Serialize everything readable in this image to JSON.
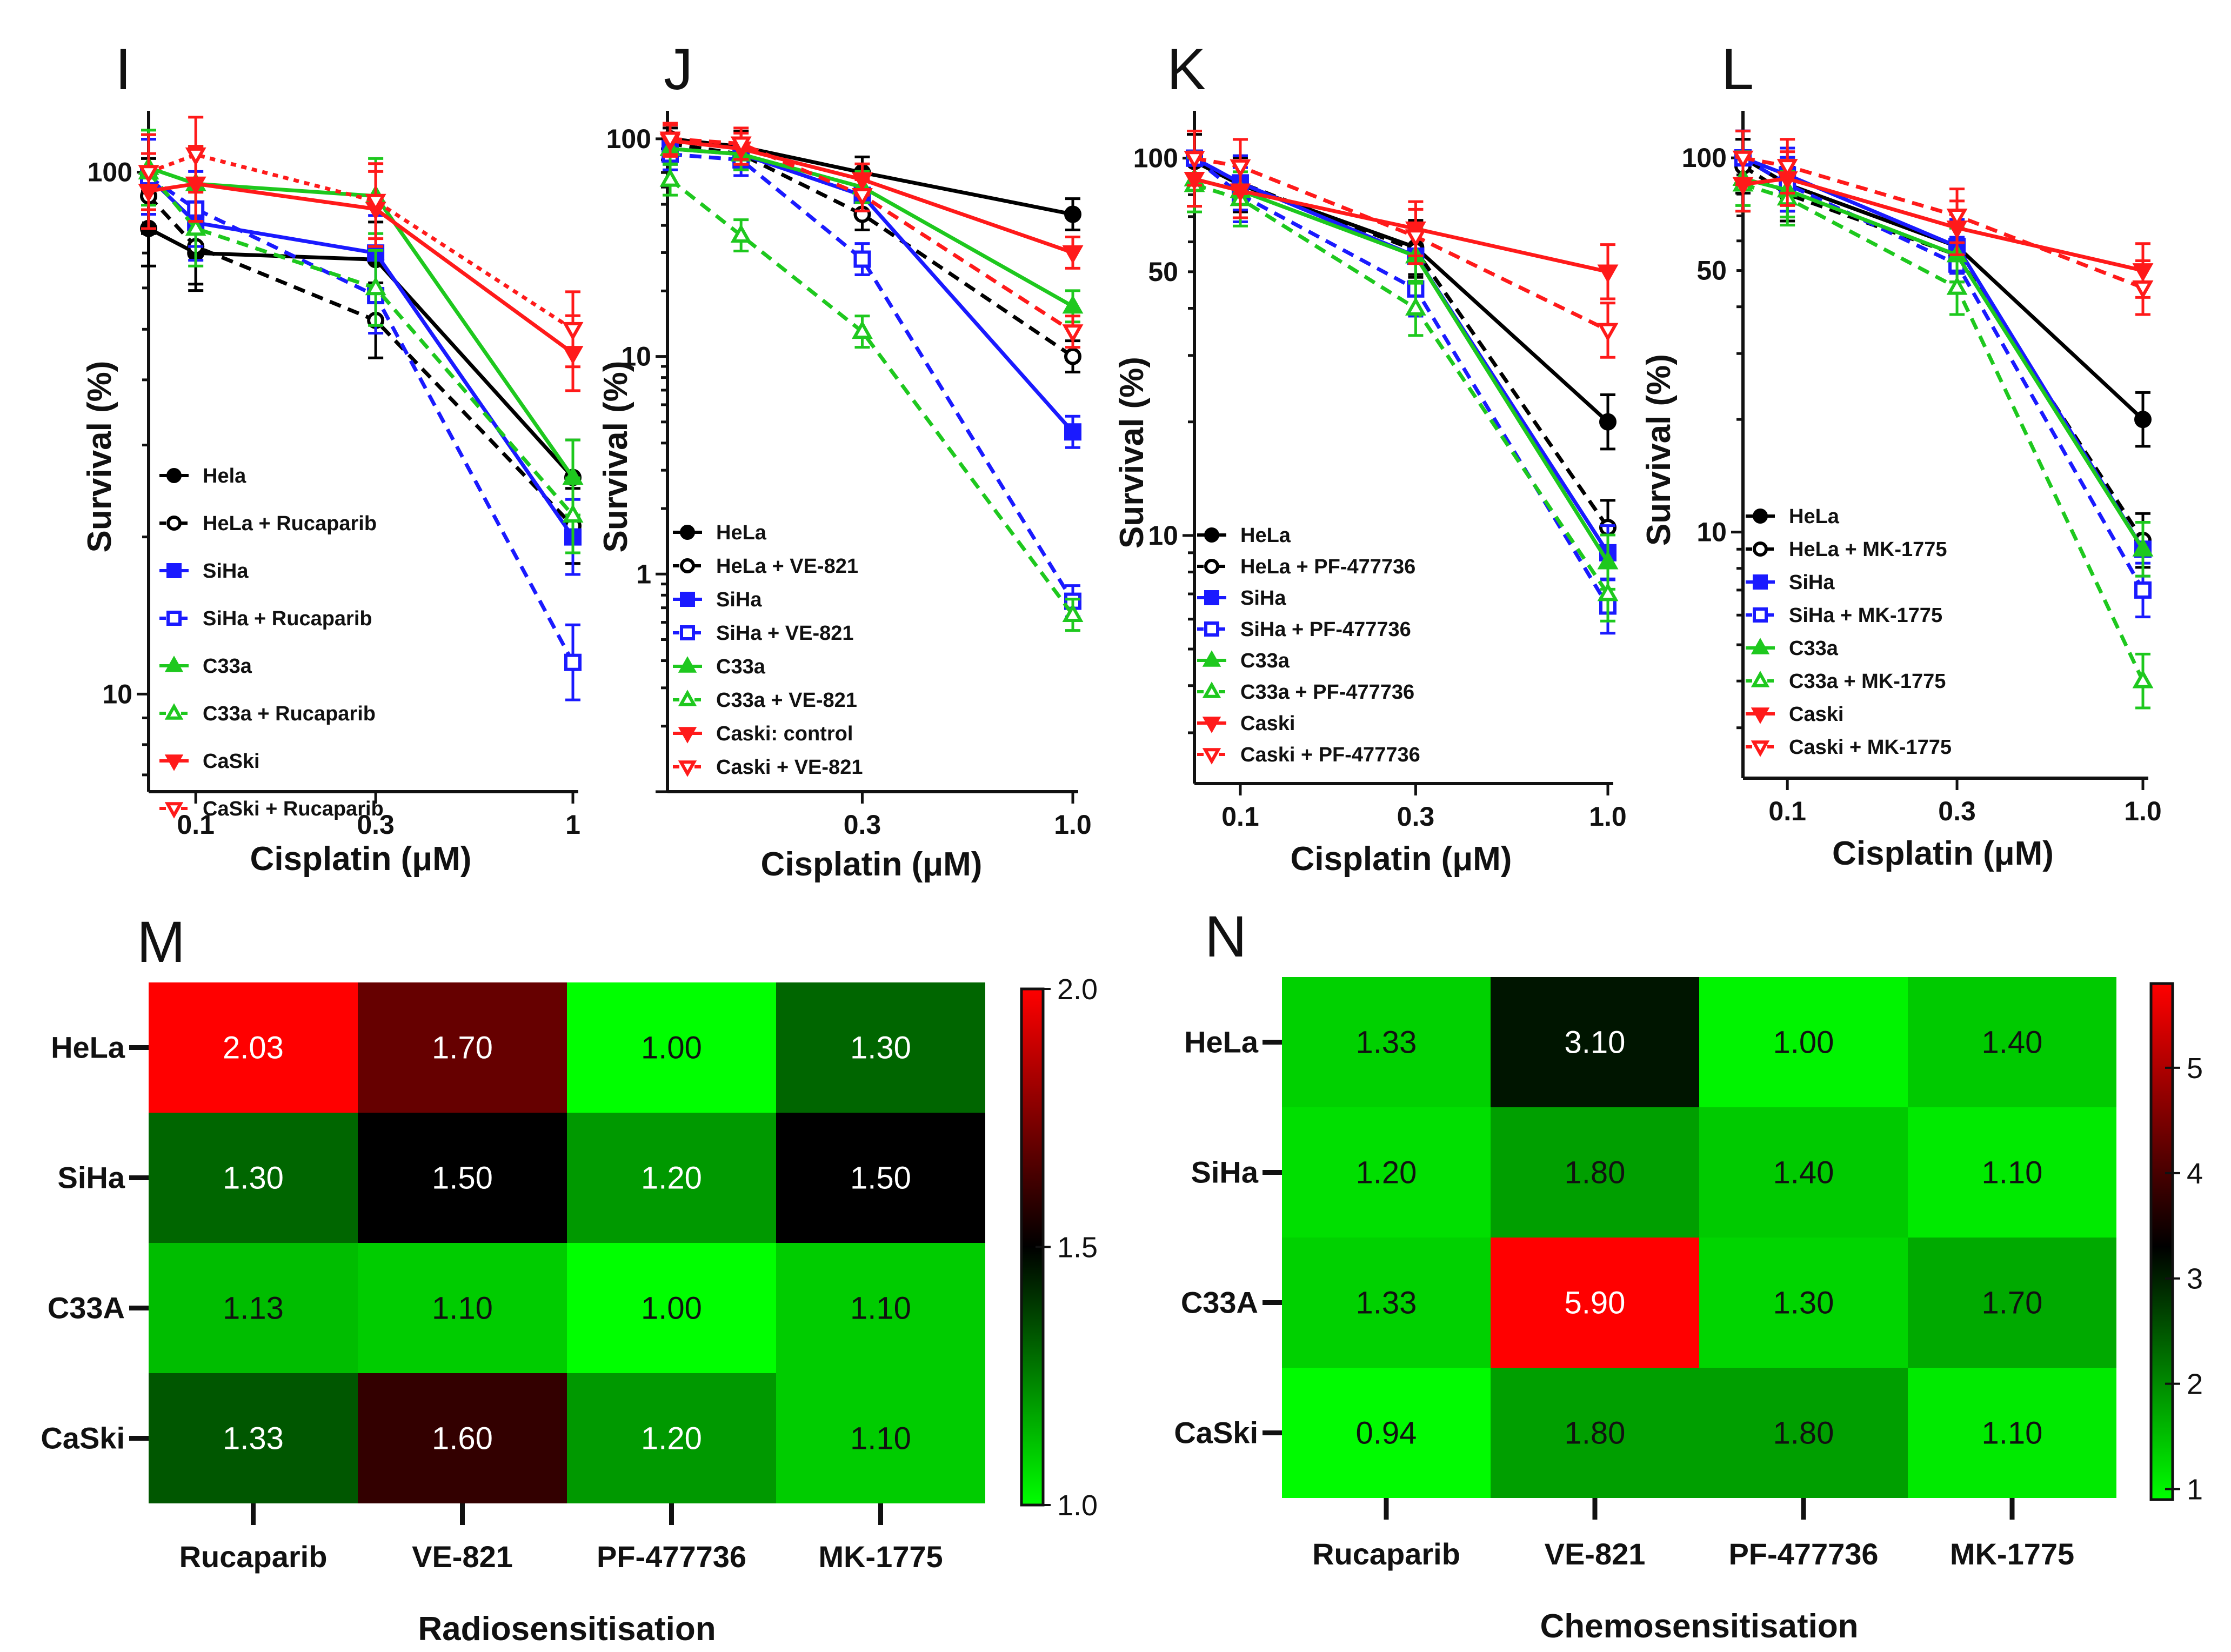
{
  "colors": {
    "hela": "#000000",
    "siha": "#1a1aff",
    "c33a": "#1ec81e",
    "caski": "#ff1a1a",
    "heat_low": "#00ff00",
    "heat_mid": "#000000",
    "heat_high": "#ff0000"
  },
  "chart_data": [
    {
      "type": "line",
      "panel": "I",
      "xlabel": "Cisplatin (μM)",
      "ylabel": "Survival (%)",
      "xscale": "log",
      "yscale": "log",
      "xlim": [
        0.075,
        1.0
      ],
      "ylim": [
        6.5,
        125
      ],
      "x": [
        0.075,
        0.1,
        0.3,
        1.0
      ],
      "x_tick_labels": [
        "0.1",
        "0.3",
        "1"
      ],
      "x_tick_values": [
        0.1,
        0.3,
        1.0
      ],
      "y_tick_labels": [
        "100",
        "10"
      ],
      "y_tick_values": [
        100,
        10
      ],
      "legend_position": "bottom-left",
      "series": [
        {
          "name": "Hela",
          "color": "hela",
          "style": "solid",
          "marker": "filled-circle",
          "values": [
            78,
            70,
            68,
            26
          ]
        },
        {
          "name": "HeLa + Rucaparib",
          "color": "hela",
          "style": "dashed",
          "marker": "open-circle",
          "values": [
            90,
            72,
            52,
            21
          ]
        },
        {
          "name": "SiHa",
          "color": "siha",
          "style": "solid",
          "marker": "filled-square",
          "values": [
            98,
            80,
            70,
            20
          ]
        },
        {
          "name": "SiHa + Rucaparib",
          "color": "siha",
          "style": "dashed",
          "marker": "open-square",
          "values": [
            98,
            85,
            58,
            11.5
          ]
        },
        {
          "name": "C33a",
          "color": "c33a",
          "style": "solid",
          "marker": "filled-triangle-up",
          "values": [
            102,
            95,
            90,
            26
          ]
        },
        {
          "name": "C33a + Rucaparib",
          "color": "c33a",
          "style": "dashed",
          "marker": "open-triangle-up",
          "values": [
            100,
            78,
            60,
            22
          ]
        },
        {
          "name": "CaSki",
          "color": "caski",
          "style": "solid",
          "marker": "filled-triangle-down",
          "values": [
            92,
            95,
            85,
            45
          ]
        },
        {
          "name": "CaSki + Rucaparib",
          "color": "caski",
          "style": "dotted",
          "marker": "open-triangle-down",
          "values": [
            100,
            108,
            88,
            50
          ]
        }
      ]
    },
    {
      "type": "line",
      "panel": "J",
      "xlabel": "Cisplatin (μM)",
      "ylabel": "Survival (%)",
      "xscale": "log",
      "yscale": "log",
      "xlim": [
        0.1,
        1.0
      ],
      "ylim": [
        0.1,
        120
      ],
      "x": [
        0.1,
        0.15,
        0.3,
        1.0
      ],
      "x_tick_labels": [
        "0.3",
        "1.0"
      ],
      "x_tick_values": [
        0.3,
        1.0
      ],
      "y_tick_labels": [
        "100",
        "10",
        "1"
      ],
      "y_tick_values": [
        100,
        10,
        1
      ],
      "legend_position": "bottom-left",
      "series": [
        {
          "name": "HeLa",
          "color": "hela",
          "style": "solid",
          "marker": "filled-circle",
          "values": [
            100,
            92,
            70,
            45
          ]
        },
        {
          "name": "HeLa + VE-821",
          "color": "hela",
          "style": "dashed",
          "marker": "open-circle",
          "values": [
            95,
            85,
            45,
            10
          ]
        },
        {
          "name": "SiHa",
          "color": "siha",
          "style": "solid",
          "marker": "filled-square",
          "values": [
            90,
            85,
            55,
            4.5
          ]
        },
        {
          "name": "SiHa + VE-821",
          "color": "siha",
          "style": "dashed",
          "marker": "open-square",
          "values": [
            85,
            80,
            28,
            0.75
          ]
        },
        {
          "name": "C33a",
          "color": "c33a",
          "style": "solid",
          "marker": "filled-triangle-up",
          "values": [
            90,
            85,
            60,
            17
          ]
        },
        {
          "name": "C33a + VE-821",
          "color": "c33a",
          "style": "dashed",
          "marker": "open-triangle-up",
          "values": [
            65,
            36,
            13,
            0.65
          ]
        },
        {
          "name": "Caski: control",
          "color": "caski",
          "style": "solid",
          "marker": "filled-triangle-down",
          "values": [
            98,
            90,
            65,
            30
          ]
        },
        {
          "name": "Caski + VE-821",
          "color": "caski",
          "style": "dashed",
          "marker": "open-triangle-down",
          "values": [
            100,
            95,
            55,
            13
          ]
        }
      ]
    },
    {
      "type": "line",
      "panel": "K",
      "xlabel": "Cisplatin (μM)",
      "ylabel": "Survival (%)",
      "xscale": "log",
      "yscale": "log",
      "xlim": [
        0.075,
        1.0
      ],
      "ylim": [
        2.2,
        125
      ],
      "x": [
        0.075,
        0.1,
        0.3,
        1.0
      ],
      "x_tick_labels": [
        "0.1",
        "0.3",
        "1.0"
      ],
      "x_tick_values": [
        0.1,
        0.3,
        1.0
      ],
      "y_tick_labels": [
        "100",
        "50",
        "10"
      ],
      "y_tick_values": [
        100,
        50,
        10
      ],
      "legend_position": "bottom-left",
      "series": [
        {
          "name": "HeLa",
          "color": "hela",
          "style": "solid",
          "marker": "filled-circle",
          "values": [
            98,
            85,
            58,
            20
          ]
        },
        {
          "name": "HeLa + PF-477736",
          "color": "hela",
          "style": "dashed",
          "marker": "open-circle",
          "values": [
            100,
            86,
            57,
            10.5
          ]
        },
        {
          "name": "SiHa",
          "color": "siha",
          "style": "solid",
          "marker": "filled-square",
          "values": [
            100,
            86,
            55,
            9
          ]
        },
        {
          "name": "SiHa + PF-477736",
          "color": "siha",
          "style": "dashed",
          "marker": "open-square",
          "values": [
            100,
            80,
            45,
            6.5
          ]
        },
        {
          "name": "C33a",
          "color": "c33a",
          "style": "solid",
          "marker": "filled-triangle-up",
          "values": [
            88,
            82,
            55,
            8.5
          ]
        },
        {
          "name": "C33a + PF-477736",
          "color": "c33a",
          "style": "dashed",
          "marker": "open-triangle-up",
          "values": [
            85,
            78,
            40,
            7
          ]
        },
        {
          "name": "Caski",
          "color": "caski",
          "style": "solid",
          "marker": "filled-triangle-down",
          "values": [
            88,
            82,
            65,
            50
          ]
        },
        {
          "name": "Caski + PF-477736",
          "color": "caski",
          "style": "dashed",
          "marker": "open-triangle-down",
          "values": [
            100,
            95,
            62,
            35
          ]
        }
      ]
    },
    {
      "type": "line",
      "panel": "L",
      "xlabel": "Cisplatin (μM)",
      "ylabel": "Survival (%)",
      "xscale": "log",
      "yscale": "log",
      "xlim": [
        0.075,
        1.0
      ],
      "ylim": [
        2.2,
        125
      ],
      "x": [
        0.075,
        0.1,
        0.3,
        1.0
      ],
      "x_tick_labels": [
        "0.1",
        "0.3",
        "1.0"
      ],
      "x_tick_values": [
        0.1,
        0.3,
        1.0
      ],
      "y_tick_labels": [
        "100",
        "50",
        "10"
      ],
      "y_tick_values": [
        100,
        50,
        10
      ],
      "legend_position": "bottom-left",
      "series": [
        {
          "name": "HeLa",
          "color": "hela",
          "style": "solid",
          "marker": "filled-circle",
          "values": [
            100,
            85,
            58,
            20
          ]
        },
        {
          "name": "HeLa + MK-1775",
          "color": "hela",
          "style": "dashed",
          "marker": "open-circle",
          "values": [
            95,
            80,
            55,
            9.5
          ]
        },
        {
          "name": "SiHa",
          "color": "siha",
          "style": "solid",
          "marker": "filled-square",
          "values": [
            100,
            90,
            58,
            9
          ]
        },
        {
          "name": "SiHa + MK-1775",
          "color": "siha",
          "style": "dashed",
          "marker": "open-square",
          "values": [
            100,
            85,
            52,
            7
          ]
        },
        {
          "name": "C33a",
          "color": "c33a",
          "style": "solid",
          "marker": "filled-triangle-up",
          "values": [
            88,
            82,
            55,
            9
          ]
        },
        {
          "name": "C33a + MK-1775",
          "color": "c33a",
          "style": "dashed",
          "marker": "open-triangle-up",
          "values": [
            85,
            78,
            45,
            4
          ]
        },
        {
          "name": "Caski",
          "color": "caski",
          "style": "solid",
          "marker": "filled-triangle-down",
          "values": [
            85,
            88,
            65,
            50
          ]
        },
        {
          "name": "Caski + MK-1775",
          "color": "caski",
          "style": "dashed",
          "marker": "open-triangle-down",
          "values": [
            100,
            95,
            70,
            45
          ]
        }
      ]
    },
    {
      "type": "heatmap",
      "panel": "M",
      "title": "Radiosensitisation",
      "rows": [
        "HeLa",
        "SiHa",
        "C33A",
        "CaSki"
      ],
      "columns": [
        "Rucaparib",
        "VE-821",
        "PF-477736",
        "MK-1775"
      ],
      "values": [
        [
          2.03,
          1.7,
          1.0,
          1.3
        ],
        [
          1.3,
          1.5,
          1.2,
          1.5
        ],
        [
          1.13,
          1.1,
          1.0,
          1.1
        ],
        [
          1.33,
          1.6,
          1.2,
          1.1
        ]
      ],
      "labels": [
        [
          "2.03",
          "1.70",
          "1.00",
          "1.30"
        ],
        [
          "1.30",
          "1.50",
          "1.20",
          "1.50"
        ],
        [
          "1.13",
          "1.10",
          "1.00",
          "1.10"
        ],
        [
          "1.33",
          "1.60",
          "1.20",
          "1.10"
        ]
      ],
      "colorbar": {
        "min": 1.0,
        "mid": 1.5,
        "max": 2.0,
        "ticks": [
          "2.0",
          "1.5",
          "1.0"
        ],
        "tick_values": [
          2.0,
          1.5,
          1.0
        ]
      }
    },
    {
      "type": "heatmap",
      "panel": "N",
      "title": "Chemosensitisation",
      "rows": [
        "HeLa",
        "SiHa",
        "C33A",
        "CaSki"
      ],
      "columns": [
        "Rucaparib",
        "VE-821",
        "PF-477736",
        "MK-1775"
      ],
      "values": [
        [
          1.33,
          3.1,
          1.0,
          1.4
        ],
        [
          1.2,
          1.8,
          1.4,
          1.1
        ],
        [
          1.33,
          5.9,
          1.3,
          1.7
        ],
        [
          0.94,
          1.8,
          1.8,
          1.1
        ]
      ],
      "labels": [
        [
          "1.33",
          "3.10",
          "1.00",
          "1.40"
        ],
        [
          "1.20",
          "1.80",
          "1.40",
          "1.10"
        ],
        [
          "1.33",
          "5.90",
          "1.30",
          "1.70"
        ],
        [
          "0.94",
          "1.80",
          "1.80",
          "1.10"
        ]
      ],
      "colorbar": {
        "min": 0.9,
        "mid": 3.3,
        "max": 5.8,
        "ticks": [
          "5",
          "4",
          "3",
          "2",
          "1"
        ],
        "tick_values": [
          5,
          4,
          3,
          2,
          1
        ]
      }
    }
  ]
}
